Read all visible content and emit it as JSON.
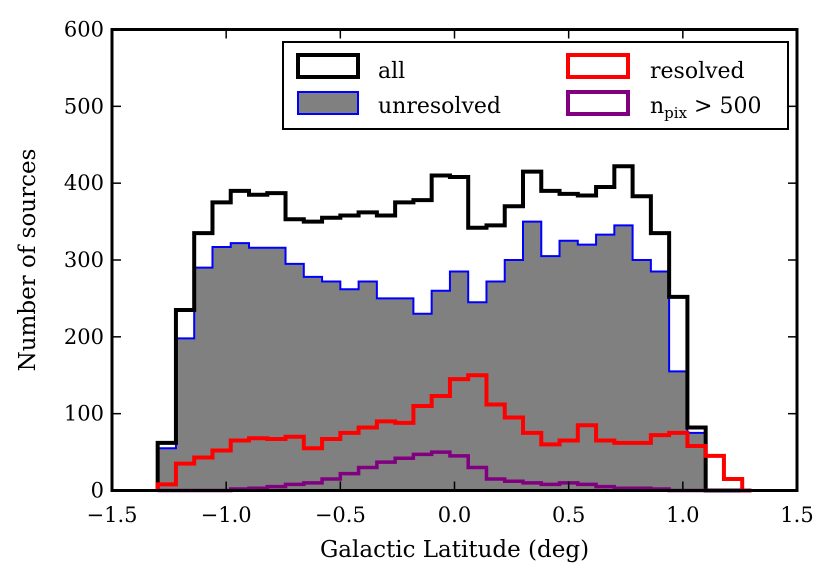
{
  "chart_data": {
    "type": "histogram",
    "title": "",
    "xlabel": "Galactic Latitude (deg)",
    "ylabel": "Number of sources",
    "xlim": [
      -1.5,
      1.5
    ],
    "ylim": [
      0,
      600
    ],
    "xticks": [
      -1.5,
      -1.0,
      -0.5,
      0.0,
      0.5,
      1.0,
      1.5
    ],
    "xtick_labels": [
      "−1.5",
      "−1.0",
      "−0.5",
      "0.0",
      "0.5",
      "1.0",
      "1.5"
    ],
    "yticks": [
      0,
      100,
      200,
      300,
      400,
      500,
      600
    ],
    "ytick_labels": [
      "0",
      "100",
      "200",
      "300",
      "400",
      "500",
      "600"
    ],
    "grid": false,
    "legend_position": "top-right",
    "bin_edges": [
      -1.3,
      -1.22,
      -1.14,
      -1.06,
      -0.98,
      -0.9,
      -0.82,
      -0.74,
      -0.66,
      -0.58,
      -0.5,
      -0.42,
      -0.34,
      -0.26,
      -0.18,
      -0.1,
      -0.02,
      0.06,
      0.14,
      0.22,
      0.3,
      0.38,
      0.46,
      0.54,
      0.62,
      0.7,
      0.78,
      0.86,
      0.94,
      1.02,
      1.1,
      1.18,
      1.26,
      1.3
    ],
    "series": [
      {
        "name": "unresolved",
        "label": "unresolved",
        "style": "filled",
        "color": "#0000ff",
        "fill": "#808080",
        "values": [
          55,
          198,
          290,
          317,
          322,
          316,
          316,
          295,
          278,
          272,
          262,
          272,
          250,
          250,
          230,
          260,
          285,
          245,
          272,
          300,
          350,
          305,
          325,
          320,
          333,
          345,
          300,
          285,
          155,
          75,
          0,
          0,
          0
        ]
      },
      {
        "name": "all",
        "label": "all",
        "style": "step",
        "color": "#000000",
        "values": [
          62,
          235,
          335,
          375,
          390,
          385,
          387,
          353,
          350,
          355,
          358,
          362,
          358,
          375,
          378,
          410,
          408,
          342,
          345,
          370,
          415,
          390,
          386,
          384,
          395,
          422,
          383,
          335,
          252,
          82,
          0,
          0,
          0
        ]
      },
      {
        "name": "resolved",
        "label": "resolved",
        "style": "step",
        "color": "#ff0000",
        "values": [
          8,
          35,
          43,
          52,
          65,
          68,
          67,
          70,
          55,
          67,
          75,
          82,
          90,
          88,
          110,
          123,
          145,
          150,
          112,
          95,
          75,
          60,
          65,
          85,
          65,
          62,
          62,
          72,
          75,
          58,
          45,
          15,
          0
        ]
      },
      {
        "name": "npix_gt_500",
        "label_base": "n",
        "label_sub": "pix",
        "label_rest": " > 500",
        "style": "step",
        "color": "#800080",
        "values": [
          0,
          0,
          0,
          0,
          2,
          3,
          5,
          8,
          10,
          15,
          22,
          30,
          37,
          42,
          47,
          50,
          45,
          30,
          15,
          12,
          10,
          8,
          10,
          8,
          5,
          3,
          3,
          2,
          0,
          0,
          0,
          0,
          0
        ]
      }
    ]
  }
}
